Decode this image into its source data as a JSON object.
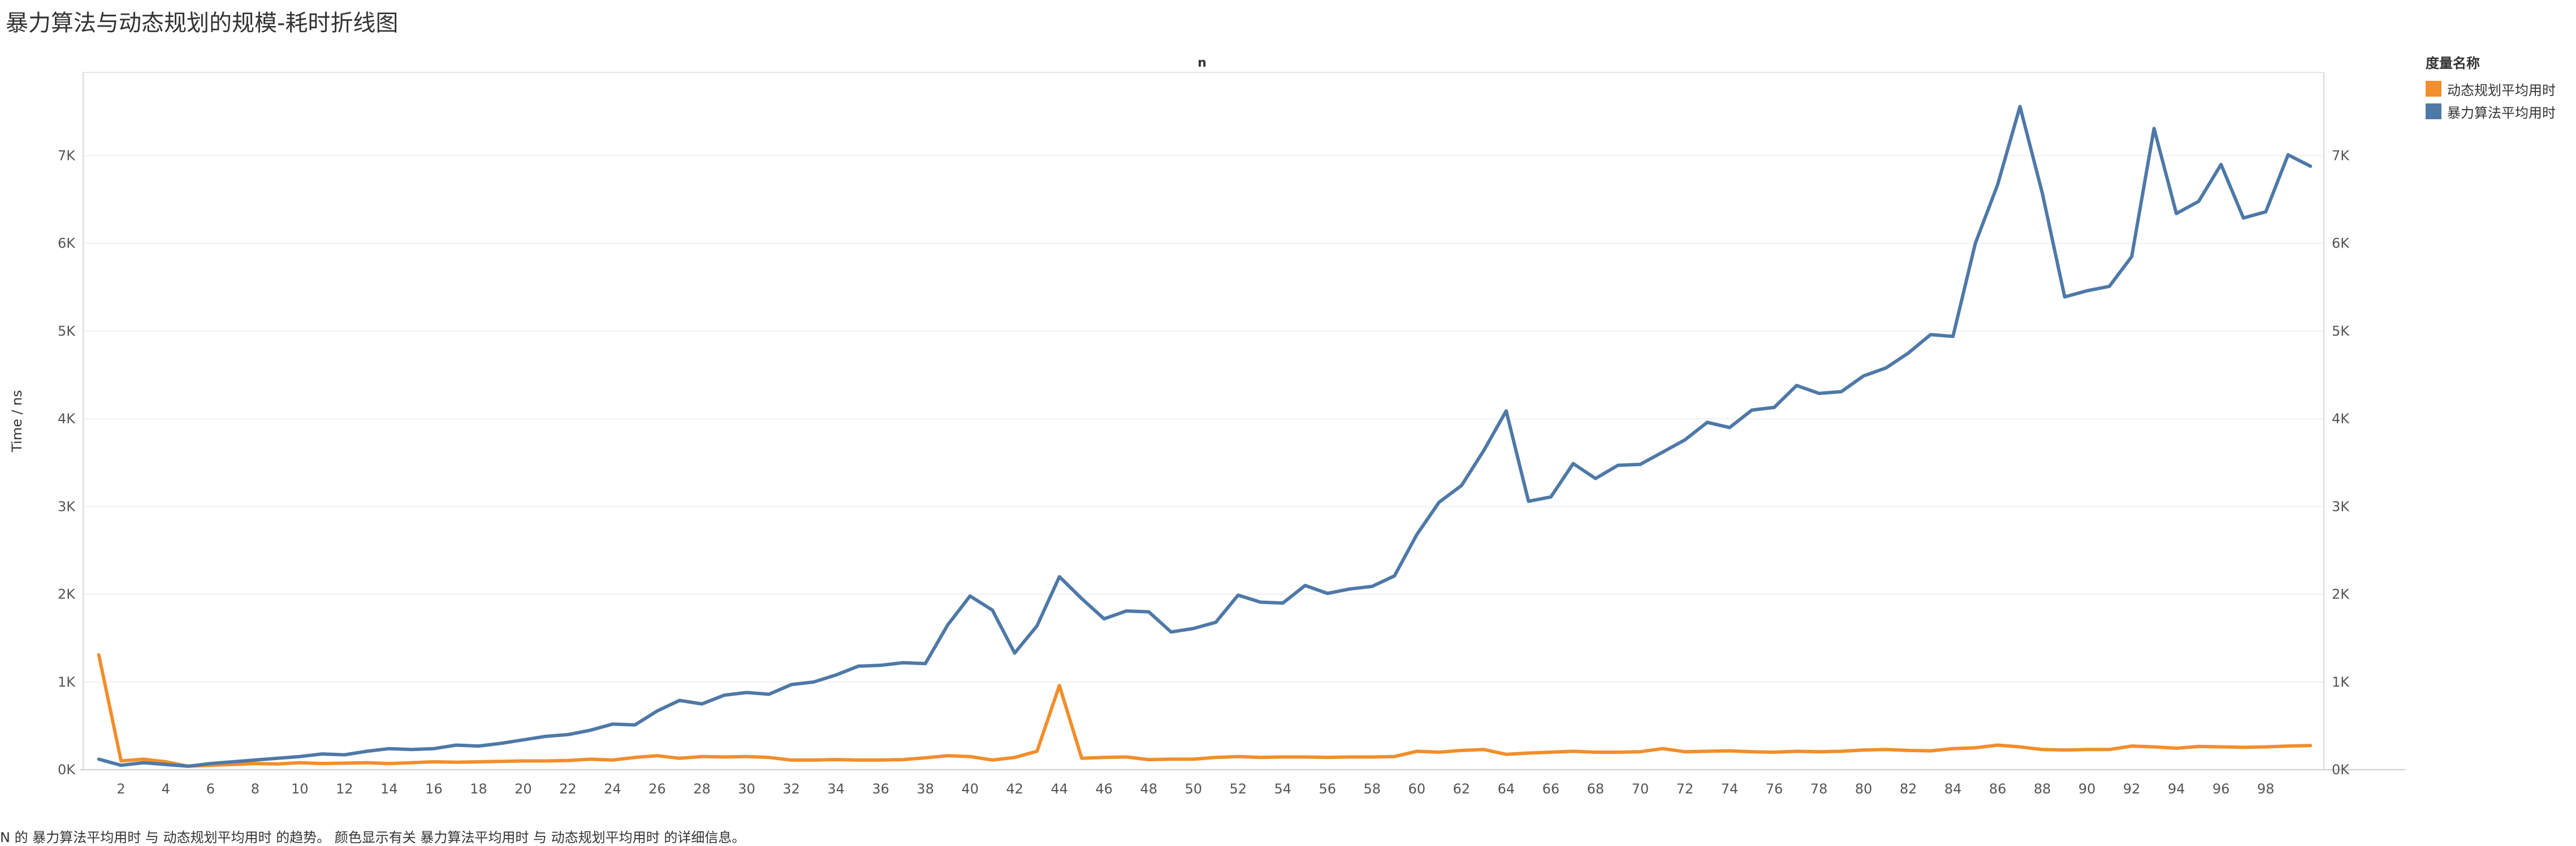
{
  "page_title": "暴力算法与动态规划的规模-耗时折线图",
  "caption": "N 的 暴力算法平均用时 与 动态规划平均用时 的趋势。 颜色显示有关 暴力算法平均用时 与 动态规划平均用时 的详细信息。",
  "legend": {
    "title": "度量名称",
    "items": [
      {
        "label": "动态规划平均用时",
        "color": "#F28E2B"
      },
      {
        "label": "暴力算法平均用时",
        "color": "#4E79A7"
      }
    ]
  },
  "chart_data": {
    "type": "line",
    "title": "暴力算法与动态规划的规模-耗时折线图",
    "xlabel": "n",
    "ylabel": "Time / ns",
    "x_tick_labels": [
      "2",
      "4",
      "6",
      "8",
      "10",
      "12",
      "14",
      "16",
      "18",
      "20",
      "22",
      "24",
      "26",
      "28",
      "30",
      "32",
      "34",
      "36",
      "38",
      "40",
      "42",
      "44",
      "46",
      "48",
      "50",
      "52",
      "54",
      "56",
      "58",
      "60",
      "62",
      "64",
      "66",
      "68",
      "70",
      "72",
      "74",
      "76",
      "78",
      "80",
      "82",
      "84",
      "86",
      "88",
      "90",
      "92",
      "94",
      "96",
      "98"
    ],
    "y_tick_labels": [
      "0K",
      "1K",
      "2K",
      "3K",
      "4K",
      "5K",
      "6K",
      "7K"
    ],
    "y_ticks": [
      0,
      1000,
      2000,
      3000,
      4000,
      5000,
      6000,
      7000
    ],
    "ylim": [
      0,
      7950
    ],
    "xlim": [
      0.3,
      100.6
    ],
    "grid": true,
    "legend_position": "right",
    "x": [
      1,
      2,
      3,
      4,
      5,
      6,
      7,
      8,
      9,
      10,
      11,
      12,
      13,
      14,
      15,
      16,
      17,
      18,
      19,
      20,
      21,
      22,
      23,
      24,
      25,
      26,
      27,
      28,
      29,
      30,
      31,
      32,
      33,
      34,
      35,
      36,
      37,
      38,
      39,
      40,
      41,
      42,
      43,
      44,
      45,
      46,
      47,
      48,
      49,
      50,
      51,
      52,
      53,
      54,
      55,
      56,
      57,
      58,
      59,
      60,
      61,
      62,
      63,
      64,
      65,
      66,
      67,
      68,
      69,
      70,
      71,
      72,
      73,
      74,
      75,
      76,
      77,
      78,
      79,
      80,
      81,
      82,
      83,
      84,
      85,
      86,
      87,
      88,
      89,
      90,
      91,
      92,
      93,
      94,
      95,
      96,
      97,
      98,
      99,
      100
    ],
    "series": [
      {
        "name": "动态规划平均用时",
        "color": "#F28E2B",
        "values": [
          1310,
          100,
          120,
          90,
          40,
          50,
          60,
          70,
          65,
          80,
          70,
          75,
          80,
          70,
          80,
          90,
          85,
          90,
          95,
          100,
          100,
          105,
          120,
          110,
          140,
          160,
          130,
          150,
          145,
          150,
          140,
          110,
          110,
          115,
          110,
          110,
          115,
          135,
          160,
          150,
          110,
          140,
          210,
          960,
          130,
          140,
          145,
          115,
          120,
          120,
          140,
          150,
          140,
          145,
          145,
          140,
          145,
          145,
          150,
          210,
          200,
          220,
          230,
          175,
          190,
          200,
          210,
          200,
          200,
          205,
          240,
          205,
          210,
          215,
          205,
          200,
          210,
          205,
          210,
          225,
          230,
          220,
          215,
          240,
          250,
          280,
          260,
          230,
          225,
          230,
          230,
          270,
          260,
          245,
          265,
          260,
          255,
          260,
          270,
          275
        ]
      },
      {
        "name": "暴力算法平均用时",
        "color": "#4E79A7",
        "values": [
          120,
          50,
          80,
          60,
          40,
          70,
          90,
          110,
          130,
          150,
          180,
          170,
          210,
          240,
          230,
          240,
          280,
          270,
          300,
          340,
          380,
          400,
          450,
          520,
          510,
          670,
          790,
          750,
          850,
          880,
          860,
          970,
          1000,
          1080,
          1180,
          1190,
          1220,
          1210,
          1650,
          1980,
          1820,
          1330,
          1640,
          2200,
          1950,
          1720,
          1810,
          1800,
          1570,
          1610,
          1680,
          1990,
          1910,
          1900,
          2100,
          2010,
          2060,
          2090,
          2210,
          2680,
          3050,
          3240,
          3640,
          4090,
          3060,
          3110,
          3490,
          3320,
          3470,
          3480,
          3620,
          3760,
          3960,
          3900,
          4100,
          4130,
          4380,
          4290,
          4310,
          4490,
          4580,
          4750,
          4960,
          4940,
          6000,
          6670,
          7560,
          6570,
          5390,
          5460,
          5510,
          5850,
          7310,
          6340,
          6480,
          6900,
          6290,
          6360,
          7010,
          6880
        ]
      }
    ]
  }
}
